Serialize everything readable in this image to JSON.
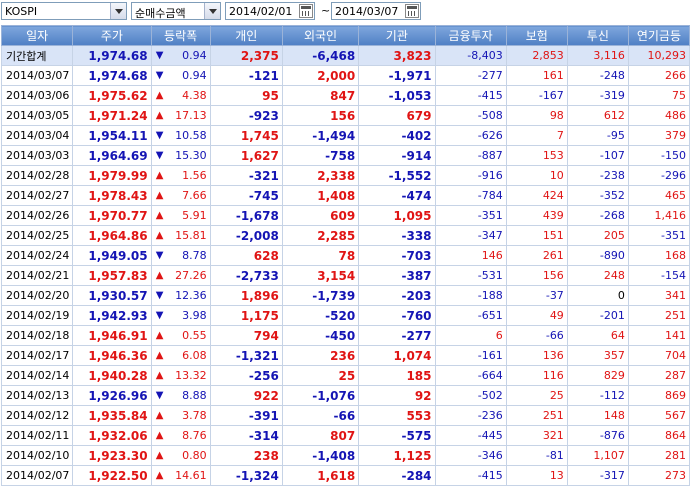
{
  "toolbar": {
    "market": "KOSPI",
    "metric": "순매수금액",
    "start_date": "2014/02/01",
    "separator": "~",
    "end_date": "2014/03/07"
  },
  "colors": {
    "up": "#e01414",
    "down": "#1414b4",
    "header_bg": "#5b89cc"
  },
  "table": {
    "columns": [
      "일자",
      "주가",
      "등락폭",
      "개인",
      "외국인",
      "기관",
      "금융투자",
      "보험",
      "투신",
      "연기금등"
    ],
    "rows": [
      {
        "date": "기간합계",
        "price": "1,974.68",
        "dir": "down",
        "change": "0.94",
        "indiv": "2,375",
        "foreign": "-6,468",
        "inst": "3,823",
        "fin": "-8,403",
        "ins": "2,853",
        "trust": "3,116",
        "pension": "10,293",
        "total": true
      },
      {
        "date": "2014/03/07",
        "price": "1,974.68",
        "dir": "down",
        "change": "0.94",
        "indiv": "-121",
        "foreign": "2,000",
        "inst": "-1,971",
        "fin": "-277",
        "ins": "161",
        "trust": "-248",
        "pension": "266"
      },
      {
        "date": "2014/03/06",
        "price": "1,975.62",
        "dir": "up",
        "change": "4.38",
        "indiv": "95",
        "foreign": "847",
        "inst": "-1,053",
        "fin": "-415",
        "ins": "-167",
        "trust": "-319",
        "pension": "75"
      },
      {
        "date": "2014/03/05",
        "price": "1,971.24",
        "dir": "up",
        "change": "17.13",
        "indiv": "-923",
        "foreign": "156",
        "inst": "679",
        "fin": "-508",
        "ins": "98",
        "trust": "612",
        "pension": "486"
      },
      {
        "date": "2014/03/04",
        "price": "1,954.11",
        "dir": "down",
        "change": "10.58",
        "indiv": "1,745",
        "foreign": "-1,494",
        "inst": "-402",
        "fin": "-626",
        "ins": "7",
        "trust": "-95",
        "pension": "379"
      },
      {
        "date": "2014/03/03",
        "price": "1,964.69",
        "dir": "down",
        "change": "15.30",
        "indiv": "1,627",
        "foreign": "-758",
        "inst": "-914",
        "fin": "-887",
        "ins": "153",
        "trust": "-107",
        "pension": "-150"
      },
      {
        "date": "2014/02/28",
        "price": "1,979.99",
        "dir": "up",
        "change": "1.56",
        "indiv": "-321",
        "foreign": "2,338",
        "inst": "-1,552",
        "fin": "-916",
        "ins": "10",
        "trust": "-238",
        "pension": "-296"
      },
      {
        "date": "2014/02/27",
        "price": "1,978.43",
        "dir": "up",
        "change": "7.66",
        "indiv": "-745",
        "foreign": "1,408",
        "inst": "-474",
        "fin": "-784",
        "ins": "424",
        "trust": "-352",
        "pension": "465"
      },
      {
        "date": "2014/02/26",
        "price": "1,970.77",
        "dir": "up",
        "change": "5.91",
        "indiv": "-1,678",
        "foreign": "609",
        "inst": "1,095",
        "fin": "-351",
        "ins": "439",
        "trust": "-268",
        "pension": "1,416"
      },
      {
        "date": "2014/02/25",
        "price": "1,964.86",
        "dir": "up",
        "change": "15.81",
        "indiv": "-2,008",
        "foreign": "2,285",
        "inst": "-338",
        "fin": "-347",
        "ins": "151",
        "trust": "205",
        "pension": "-351"
      },
      {
        "date": "2014/02/24",
        "price": "1,949.05",
        "dir": "down",
        "change": "8.78",
        "indiv": "628",
        "foreign": "78",
        "inst": "-703",
        "fin": "146",
        "ins": "261",
        "trust": "-890",
        "pension": "168"
      },
      {
        "date": "2014/02/21",
        "price": "1,957.83",
        "dir": "up",
        "change": "27.26",
        "indiv": "-2,733",
        "foreign": "3,154",
        "inst": "-387",
        "fin": "-531",
        "ins": "156",
        "trust": "248",
        "pension": "-154"
      },
      {
        "date": "2014/02/20",
        "price": "1,930.57",
        "dir": "down",
        "change": "12.36",
        "indiv": "1,896",
        "foreign": "-1,739",
        "inst": "-203",
        "fin": "-188",
        "ins": "-37",
        "trust": "0",
        "pension": "341"
      },
      {
        "date": "2014/02/19",
        "price": "1,942.93",
        "dir": "down",
        "change": "3.98",
        "indiv": "1,175",
        "foreign": "-520",
        "inst": "-760",
        "fin": "-651",
        "ins": "49",
        "trust": "-201",
        "pension": "251"
      },
      {
        "date": "2014/02/18",
        "price": "1,946.91",
        "dir": "up",
        "change": "0.55",
        "indiv": "794",
        "foreign": "-450",
        "inst": "-277",
        "fin": "6",
        "ins": "-66",
        "trust": "64",
        "pension": "141"
      },
      {
        "date": "2014/02/17",
        "price": "1,946.36",
        "dir": "up",
        "change": "6.08",
        "indiv": "-1,321",
        "foreign": "236",
        "inst": "1,074",
        "fin": "-161",
        "ins": "136",
        "trust": "357",
        "pension": "704"
      },
      {
        "date": "2014/02/14",
        "price": "1,940.28",
        "dir": "up",
        "change": "13.32",
        "indiv": "-256",
        "foreign": "25",
        "inst": "185",
        "fin": "-664",
        "ins": "116",
        "trust": "829",
        "pension": "287"
      },
      {
        "date": "2014/02/13",
        "price": "1,926.96",
        "dir": "down",
        "change": "8.88",
        "indiv": "922",
        "foreign": "-1,076",
        "inst": "92",
        "fin": "-502",
        "ins": "25",
        "trust": "-112",
        "pension": "869"
      },
      {
        "date": "2014/02/12",
        "price": "1,935.84",
        "dir": "up",
        "change": "3.78",
        "indiv": "-391",
        "foreign": "-66",
        "inst": "553",
        "fin": "-236",
        "ins": "251",
        "trust": "148",
        "pension": "567"
      },
      {
        "date": "2014/02/11",
        "price": "1,932.06",
        "dir": "up",
        "change": "8.76",
        "indiv": "-314",
        "foreign": "807",
        "inst": "-575",
        "fin": "-445",
        "ins": "321",
        "trust": "-876",
        "pension": "864"
      },
      {
        "date": "2014/02/10",
        "price": "1,923.30",
        "dir": "up",
        "change": "0.80",
        "indiv": "238",
        "foreign": "-1,408",
        "inst": "1,125",
        "fin": "-346",
        "ins": "-81",
        "trust": "1,107",
        "pension": "281"
      },
      {
        "date": "2014/02/07",
        "price": "1,922.50",
        "dir": "up",
        "change": "14.61",
        "indiv": "-1,324",
        "foreign": "1,618",
        "inst": "-284",
        "fin": "-415",
        "ins": "13",
        "trust": "-317",
        "pension": "273"
      }
    ]
  }
}
